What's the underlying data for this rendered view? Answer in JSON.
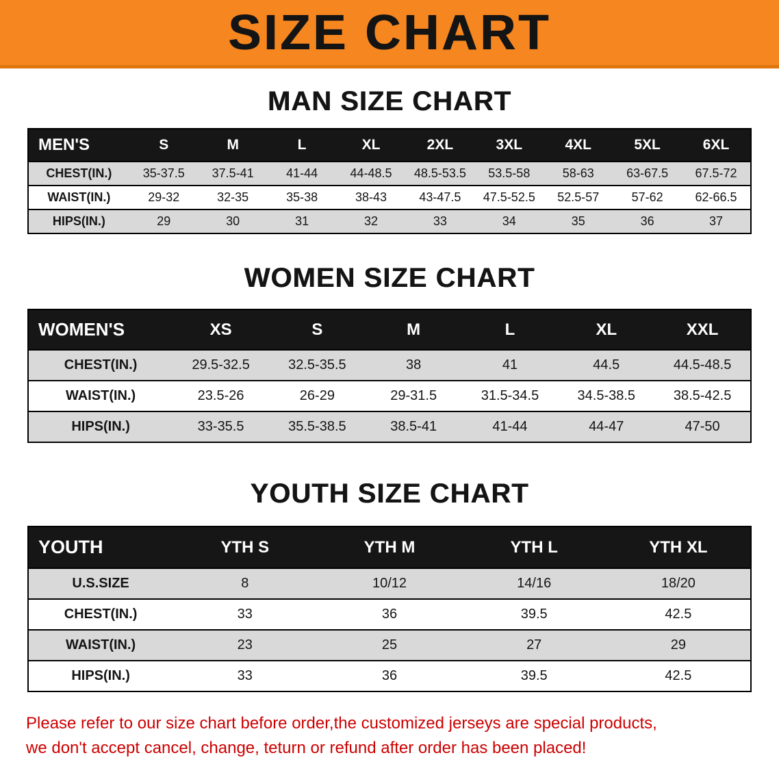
{
  "banner": {
    "title": "SIZE CHART",
    "bg_color": "#f6861f",
    "text_color": "#141414"
  },
  "sections": [
    {
      "heading": "MAN SIZE CHART",
      "table": {
        "header": [
          "MEN'S",
          "S",
          "M",
          "L",
          "XL",
          "2XL",
          "3XL",
          "4XL",
          "5XL",
          "6XL"
        ],
        "rows": [
          {
            "label": "CHEST(IN.)",
            "values": [
              "35-37.5",
              "37.5-41",
              "41-44",
              "44-48.5",
              "48.5-53.5",
              "53.5-58",
              "58-63",
              "63-67.5",
              "67.5-72"
            ]
          },
          {
            "label": "WAIST(IN.)",
            "values": [
              "29-32",
              "32-35",
              "35-38",
              "38-43",
              "43-47.5",
              "47.5-52.5",
              "52.5-57",
              "57-62",
              "62-66.5"
            ]
          },
          {
            "label": "HIPS(IN.)",
            "values": [
              "29",
              "30",
              "31",
              "32",
              "33",
              "34",
              "35",
              "36",
              "37"
            ]
          }
        ]
      }
    },
    {
      "heading": "WOMEN SIZE CHART",
      "table": {
        "header": [
          "WOMEN'S",
          "XS",
          "S",
          "M",
          "L",
          "XL",
          "XXL"
        ],
        "rows": [
          {
            "label": "CHEST(IN.)",
            "values": [
              "29.5-32.5",
              "32.5-35.5",
              "38",
              "41",
              "44.5",
              "44.5-48.5"
            ]
          },
          {
            "label": "WAIST(IN.)",
            "values": [
              "23.5-26",
              "26-29",
              "29-31.5",
              "31.5-34.5",
              "34.5-38.5",
              "38.5-42.5"
            ]
          },
          {
            "label": "HIPS(IN.)",
            "values": [
              "33-35.5",
              "35.5-38.5",
              "38.5-41",
              "41-44",
              "44-47",
              "47-50"
            ]
          }
        ]
      }
    },
    {
      "heading": "YOUTH SIZE CHART",
      "table": {
        "header": [
          "YOUTH",
          "YTH S",
          "YTH M",
          "YTH L",
          "YTH XL"
        ],
        "rows": [
          {
            "label": "U.S.SIZE",
            "values": [
              "8",
              "10/12",
              "14/16",
              "18/20"
            ]
          },
          {
            "label": "CHEST(IN.)",
            "values": [
              "33",
              "36",
              "39.5",
              "42.5"
            ]
          },
          {
            "label": "WAIST(IN.)",
            "values": [
              "23",
              "25",
              "27",
              "29"
            ]
          },
          {
            "label": "HIPS(IN.)",
            "values": [
              "33",
              "36",
              "39.5",
              "42.5"
            ]
          }
        ]
      }
    }
  ],
  "disclaimer": {
    "color": "#cc0000",
    "lines": [
      "Please refer to our size chart before order,the customized jerseys are special products,",
      "we don't accept cancel, change, teturn or refund after order has been placed!"
    ]
  }
}
